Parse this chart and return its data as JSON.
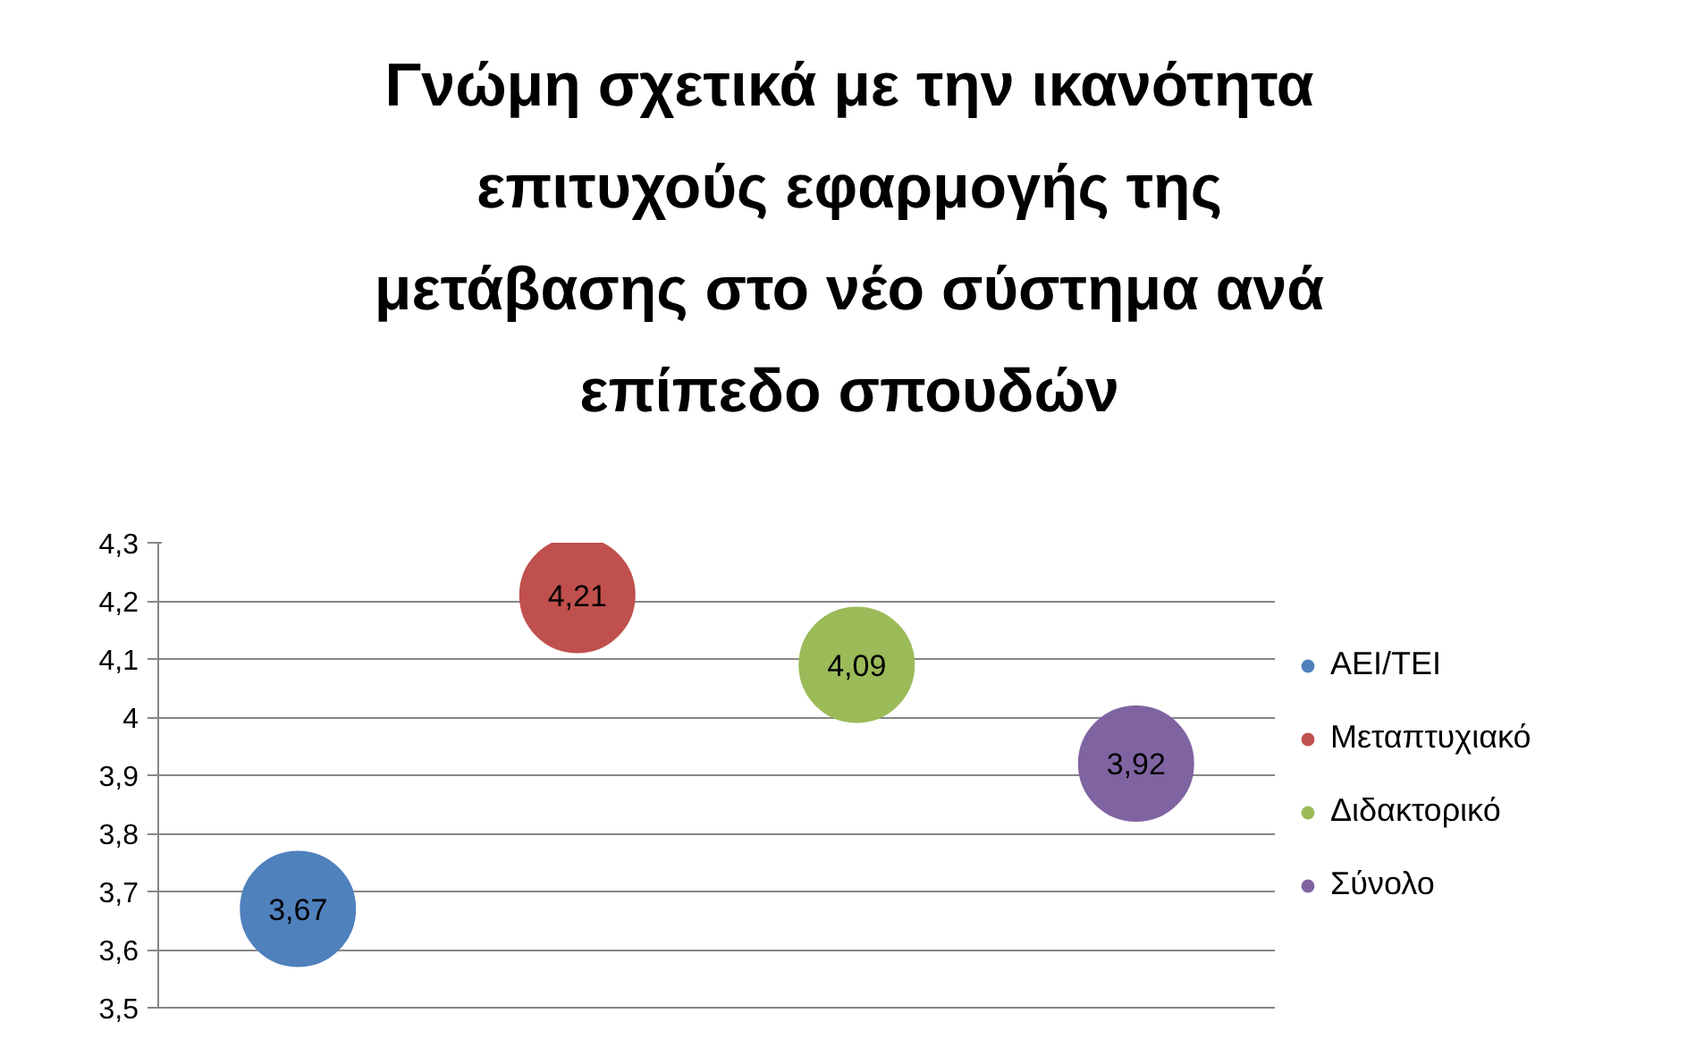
{
  "chart_data": {
    "type": "bubble",
    "title": "Γνώμη σχετικά με την ικανότητα\nεπιτυχούς εφαρμογής της\nμετάβασης στο νέο σύστημα ανά\nεπίπεδο σπουδών",
    "categories": [
      null,
      null,
      null,
      null
    ],
    "series": [
      {
        "name": "ΑΕΙ/ΤΕΙ",
        "color": "#4f81bd",
        "values": [
          3.67,
          null,
          null,
          null
        ],
        "sizes": [
          1,
          null,
          null,
          null
        ],
        "value_labels": [
          "3,67",
          null,
          null,
          null
        ]
      },
      {
        "name": "Μεταπτυχιακό",
        "color": "#c0504d",
        "values": [
          null,
          4.21,
          null,
          null
        ],
        "sizes": [
          null,
          1,
          null,
          null
        ],
        "value_labels": [
          null,
          "4,21",
          null,
          null
        ]
      },
      {
        "name": "Διδακτορικό",
        "color": "#9bbb59",
        "values": [
          null,
          null,
          4.09,
          null
        ],
        "sizes": [
          null,
          null,
          1,
          null
        ],
        "value_labels": [
          null,
          null,
          "4,09",
          null
        ]
      },
      {
        "name": "Σύνολο",
        "color": "#8064a2",
        "values": [
          null,
          null,
          null,
          3.92
        ],
        "sizes": [
          null,
          null,
          null,
          1
        ],
        "value_labels": [
          null,
          null,
          null,
          "3,92"
        ]
      }
    ],
    "ylim": [
      3.5,
      4.3
    ],
    "yticks": [
      {
        "value": 3.5,
        "label": "3,5"
      },
      {
        "value": 3.6,
        "label": "3,6"
      },
      {
        "value": 3.7,
        "label": "3,7"
      },
      {
        "value": 3.8,
        "label": "3,8"
      },
      {
        "value": 3.9,
        "label": "3,9"
      },
      {
        "value": 4,
        "label": "4"
      },
      {
        "value": 4.1,
        "label": "4,1"
      },
      {
        "value": 4.2,
        "label": "4,2"
      },
      {
        "value": 4.3,
        "label": "4,3"
      }
    ],
    "grid": "y",
    "legend": "right",
    "tick_labels": "y"
  }
}
